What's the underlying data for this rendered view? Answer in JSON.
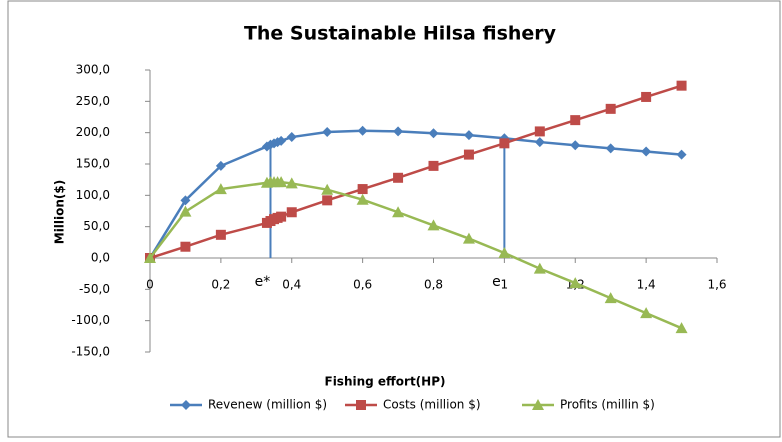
{
  "chart_data": {
    "type": "line",
    "title": "The Sustainable Hilsa fishery",
    "x_label": "Fishing effort(HP)",
    "y_label": "Million($)",
    "x": [
      0,
      0.1,
      0.2,
      0.33,
      0.34,
      0.35,
      0.36,
      0.37,
      0.4,
      0.5,
      0.6,
      0.7,
      0.8,
      0.9,
      1.0,
      1.1,
      1.2,
      1.3,
      1.4,
      1.5
    ],
    "series": [
      {
        "name": "Revenew (million $)",
        "color": "#4a7ebb",
        "marker": "diamond",
        "values": [
          0,
          92,
          147,
          178,
          181,
          183,
          185,
          187,
          193,
          201,
          203,
          202,
          199,
          196,
          191,
          185,
          180,
          175,
          170,
          165
        ]
      },
      {
        "name": "Costs (million $)",
        "color": "#be4b48",
        "marker": "square",
        "values": [
          0,
          18,
          37,
          56,
          59,
          62,
          64,
          66,
          73,
          92,
          110,
          128,
          147,
          165,
          183,
          202,
          220,
          238,
          257,
          275
        ]
      },
      {
        "name": "Profits (millin $)",
        "color": "#98b954",
        "marker": "triangle",
        "values": [
          0,
          74,
          110,
          120,
          121,
          121,
          121,
          121,
          119,
          109,
          93,
          73,
          52,
          31,
          8,
          -17,
          -40,
          -64,
          -88,
          -112
        ]
      }
    ],
    "annotations": [
      {
        "text": "e*",
        "x": 0.34
      },
      {
        "text": "e",
        "x": 1.0
      }
    ],
    "xlim": [
      0,
      1.6
    ],
    "xticks": [
      0,
      {
        "value": 0.2,
        "label": "0,2"
      },
      {
        "value": 0.4,
        "label": "0,4"
      },
      {
        "value": 0.6,
        "label": "0,6"
      },
      {
        "value": 0.8,
        "label": "0,8"
      },
      1,
      {
        "value": 1.2,
        "label": "1,2"
      },
      {
        "value": 1.4,
        "label": "1,4"
      },
      {
        "value": 1.6,
        "label": "1,6"
      }
    ],
    "ylim": [
      -150,
      300
    ],
    "yticks": [
      {
        "value": -150,
        "label": "-150,0"
      },
      {
        "value": -100,
        "label": "-100,0"
      },
      {
        "value": -50,
        "label": "-50,0"
      },
      {
        "value": 0,
        "label": "0,0"
      },
      {
        "value": 50,
        "label": "50,0"
      },
      {
        "value": 100,
        "label": "100,0"
      },
      {
        "value": 150,
        "label": "150,0"
      },
      {
        "value": 200,
        "label": "200,0"
      },
      {
        "value": 250,
        "label": "250,0"
      },
      {
        "value": 300,
        "label": "300,0"
      }
    ],
    "legend": "bottom"
  }
}
